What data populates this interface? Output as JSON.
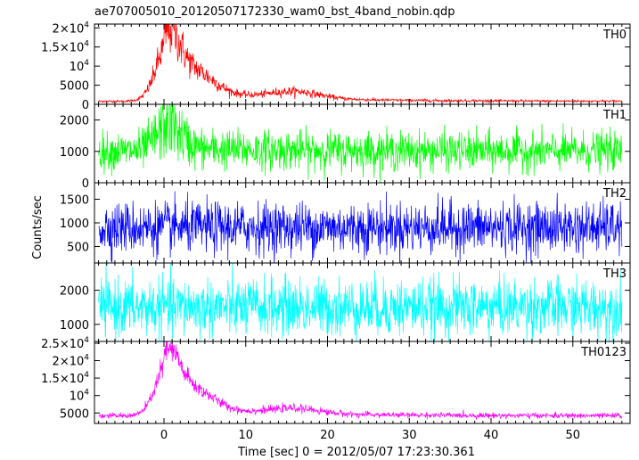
{
  "chart_data": {
    "type": "line",
    "title": "ae707005010_20120507172330_wam0_bst_4band_nobin.qdp",
    "xlabel": "Time [sec] 0 = 2012/05/07 17:23:30.361",
    "ylabel": "Counts/sec",
    "xlim": [
      -8.5,
      57
    ],
    "x_ticks": [
      0,
      10,
      20,
      30,
      40,
      50
    ],
    "x_data_range": [
      -8,
      56
    ],
    "grid": false,
    "panels": [
      {
        "name": "TH0",
        "color": "#ff0000",
        "ylim": [
          0,
          21000
        ],
        "y_ticks": [
          {
            "value": 0,
            "mant": "0",
            "exp": ""
          },
          {
            "value": 5000,
            "mant": "5000",
            "exp": ""
          },
          {
            "value": 10000,
            "mant": "10",
            "exp": "4"
          },
          {
            "value": 15000,
            "mant": "1.5×10",
            "exp": "4"
          },
          {
            "value": 20000,
            "mant": "2×10",
            "exp": "4"
          }
        ],
        "background": 800,
        "peaks": [
          {
            "t": 0.5,
            "amp": 13000,
            "w": 1.4
          },
          {
            "t": 3.5,
            "amp": 6000,
            "w": 2.5
          },
          {
            "t": 16.0,
            "amp": 1800,
            "w": 3.0
          }
        ],
        "decay_amp": 3000,
        "decay_tau": 12,
        "noise": 0.18
      },
      {
        "name": "TH1",
        "color": "#00ff00",
        "ylim": [
          0,
          2500
        ],
        "y_ticks": [
          {
            "value": 0,
            "mant": "0",
            "exp": ""
          },
          {
            "value": 1000,
            "mant": "1000",
            "exp": ""
          },
          {
            "value": 2000,
            "mant": "2000",
            "exp": ""
          }
        ],
        "background": 1000,
        "peaks": [
          {
            "t": 0.5,
            "amp": 800,
            "w": 1.5
          }
        ],
        "decay_amp": 100,
        "decay_tau": 15,
        "noise": 0.3
      },
      {
        "name": "TH2",
        "color": "#0000ff",
        "ylim": [
          150,
          1850
        ],
        "y_ticks": [
          {
            "value": 500,
            "mant": "500",
            "exp": ""
          },
          {
            "value": 1000,
            "mant": "1000",
            "exp": ""
          },
          {
            "value": 1500,
            "mant": "1500",
            "exp": ""
          }
        ],
        "background": 900,
        "peaks": [],
        "decay_amp": 0,
        "decay_tau": 10,
        "noise": 0.3
      },
      {
        "name": "TH3",
        "color": "#00ffff",
        "ylim": [
          500,
          2800
        ],
        "y_ticks": [
          {
            "value": 1000,
            "mant": "1000",
            "exp": ""
          },
          {
            "value": 2000,
            "mant": "2000",
            "exp": ""
          }
        ],
        "background": 1500,
        "peaks": [],
        "decay_amp": 0,
        "decay_tau": 10,
        "noise": 0.28
      },
      {
        "name": "TH0123",
        "color": "#ff00ff",
        "ylim": [
          2000,
          25500
        ],
        "y_ticks": [
          {
            "value": 5000,
            "mant": "5000",
            "exp": ""
          },
          {
            "value": 10000,
            "mant": "10",
            "exp": "4"
          },
          {
            "value": 15000,
            "mant": "1.5×10",
            "exp": "4"
          },
          {
            "value": 20000,
            "mant": "2×10",
            "exp": "4"
          },
          {
            "value": 25000,
            "mant": "2.5×10",
            "exp": "4"
          }
        ],
        "background": 4200,
        "peaks": [
          {
            "t": 0.5,
            "amp": 13500,
            "w": 1.4
          },
          {
            "t": 3.5,
            "amp": 6000,
            "w": 2.5
          },
          {
            "t": 16.0,
            "amp": 1500,
            "w": 3.0
          }
        ],
        "decay_amp": 2500,
        "decay_tau": 12,
        "noise": 0.09
      }
    ]
  }
}
